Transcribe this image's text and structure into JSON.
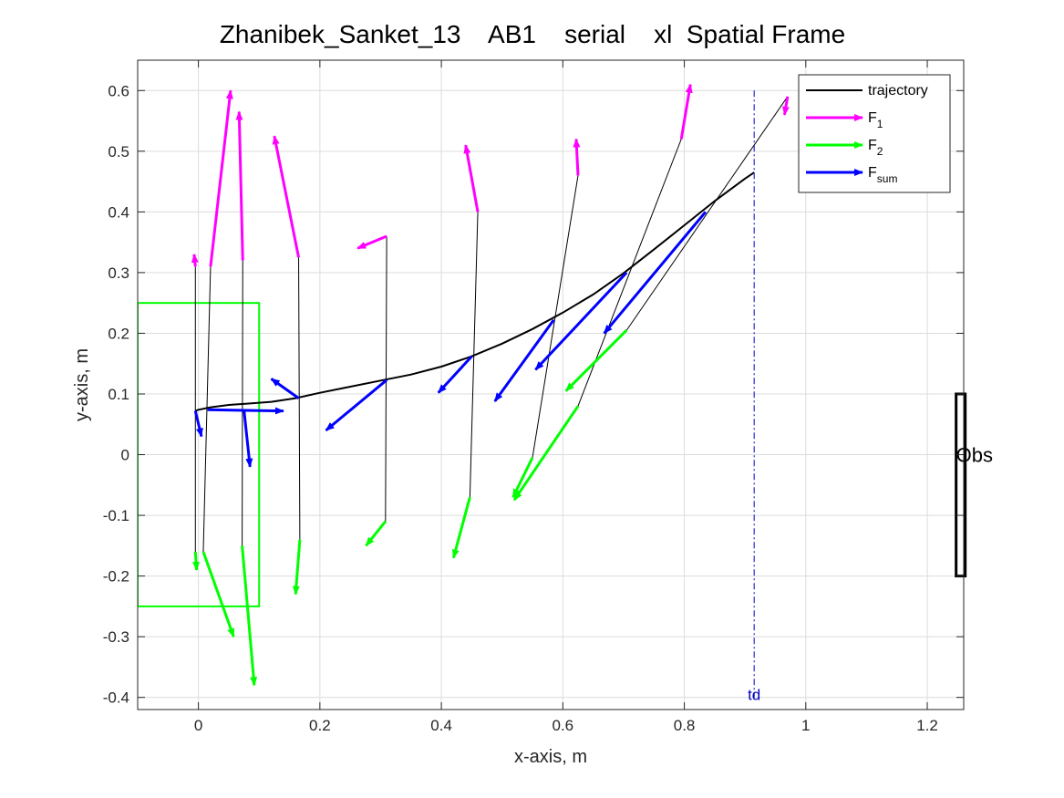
{
  "chart_data": {
    "type": "line",
    "title": "Zhanibek_Sanket_13    AB1    serial    xl  Spatial Frame",
    "xlabel": "x-axis, m",
    "ylabel": "y-axis, m",
    "xlim": [
      -0.1,
      1.26
    ],
    "ylim": [
      -0.42,
      0.65
    ],
    "xticks": [
      0,
      0.2,
      0.4,
      0.6,
      0.8,
      1,
      1.2
    ],
    "xtick_labels": [
      "0",
      "0.2",
      "0.4",
      "0.6",
      "0.8",
      "1",
      "1.2"
    ],
    "yticks": [
      -0.4,
      -0.3,
      -0.2,
      -0.1,
      0,
      0.1,
      0.2,
      0.3,
      0.4,
      0.5,
      0.6
    ],
    "ytick_labels": [
      "-0.4",
      "-0.3",
      "-0.2",
      "-0.1",
      "0",
      "0.1",
      "0.2",
      "0.3",
      "0.4",
      "0.5",
      "0.6"
    ],
    "grid": true,
    "legend_position": "top-right",
    "legend": [
      {
        "key": "trajectory",
        "label": "trajectory",
        "sub": "",
        "color": "#000000"
      },
      {
        "key": "F1",
        "label": "F",
        "sub": "1",
        "color": "#ff00ff"
      },
      {
        "key": "F2",
        "label": "F",
        "sub": "2",
        "color": "#00ff00"
      },
      {
        "key": "Fsum",
        "label": "F",
        "sub": "sum",
        "color": "#0000ff"
      }
    ],
    "colors": {
      "trajectory": "#000000",
      "F1": "#ff00ff",
      "F2": "#00ff00",
      "Fsum": "#0000ff",
      "td": "#0000c0",
      "box": "#00ff00",
      "obstacle": "#000000"
    },
    "trajectory": {
      "x": [
        -0.005,
        0.0,
        0.02,
        0.05,
        0.08,
        0.12,
        0.16,
        0.2,
        0.25,
        0.3,
        0.35,
        0.4,
        0.45,
        0.5,
        0.55,
        0.6,
        0.65,
        0.7,
        0.75,
        0.8,
        0.85,
        0.9,
        0.915
      ],
      "y": [
        0.072,
        0.074,
        0.078,
        0.082,
        0.084,
        0.087,
        0.093,
        0.102,
        0.112,
        0.122,
        0.132,
        0.145,
        0.162,
        0.183,
        0.207,
        0.234,
        0.264,
        0.299,
        0.338,
        0.378,
        0.418,
        0.455,
        0.465
      ]
    },
    "connectors": [
      {
        "x": [
          -0.005,
          -0.005
        ],
        "y": [
          0.31,
          -0.16
        ]
      },
      {
        "x": [
          0.02,
          0.008
        ],
        "y": [
          0.31,
          -0.16
        ]
      },
      {
        "x": [
          0.073,
          0.072
        ],
        "y": [
          0.32,
          -0.15
        ]
      },
      {
        "x": [
          0.165,
          0.167
        ],
        "y": [
          0.325,
          -0.14
        ]
      },
      {
        "x": [
          0.31,
          0.308
        ],
        "y": [
          0.36,
          -0.11
        ]
      },
      {
        "x": [
          0.46,
          0.447
        ],
        "y": [
          0.4,
          -0.07
        ]
      },
      {
        "x": [
          0.625,
          0.55
        ],
        "y": [
          0.46,
          -0.005
        ]
      },
      {
        "x": [
          0.795,
          0.625
        ],
        "y": [
          0.52,
          0.08
        ]
      },
      {
        "x": [
          0.97,
          0.705
        ],
        "y": [
          0.59,
          0.205
        ]
      }
    ],
    "F1": [
      {
        "x0": -0.005,
        "y0": 0.31,
        "x1": -0.007,
        "y1": 0.33
      },
      {
        "x0": 0.02,
        "y0": 0.31,
        "x1": 0.053,
        "y1": 0.6
      },
      {
        "x0": 0.073,
        "y0": 0.32,
        "x1": 0.067,
        "y1": 0.565
      },
      {
        "x0": 0.165,
        "y0": 0.325,
        "x1": 0.125,
        "y1": 0.525
      },
      {
        "x0": 0.31,
        "y0": 0.36,
        "x1": 0.262,
        "y1": 0.34
      },
      {
        "x0": 0.46,
        "y0": 0.4,
        "x1": 0.44,
        "y1": 0.51
      },
      {
        "x0": 0.625,
        "y0": 0.46,
        "x1": 0.622,
        "y1": 0.52
      },
      {
        "x0": 0.795,
        "y0": 0.52,
        "x1": 0.81,
        "y1": 0.61
      },
      {
        "x0": 0.97,
        "y0": 0.59,
        "x1": 0.965,
        "y1": 0.56
      }
    ],
    "F2": [
      {
        "x0": -0.005,
        "y0": -0.16,
        "x1": -0.003,
        "y1": -0.19
      },
      {
        "x0": 0.008,
        "y0": -0.16,
        "x1": 0.058,
        "y1": -0.3
      },
      {
        "x0": 0.072,
        "y0": -0.15,
        "x1": 0.092,
        "y1": -0.38
      },
      {
        "x0": 0.167,
        "y0": -0.14,
        "x1": 0.16,
        "y1": -0.23
      },
      {
        "x0": 0.308,
        "y0": -0.11,
        "x1": 0.276,
        "y1": -0.15
      },
      {
        "x0": 0.447,
        "y0": -0.07,
        "x1": 0.42,
        "y1": -0.17
      },
      {
        "x0": 0.55,
        "y0": -0.005,
        "x1": 0.518,
        "y1": -0.07
      },
      {
        "x0": 0.625,
        "y0": 0.08,
        "x1": 0.52,
        "y1": -0.075
      },
      {
        "x0": 0.705,
        "y0": 0.205,
        "x1": 0.605,
        "y1": 0.105
      }
    ],
    "Fsum": [
      {
        "x0": -0.005,
        "y0": 0.072,
        "x1": 0.005,
        "y1": 0.03
      },
      {
        "x0": 0.015,
        "y0": 0.074,
        "x1": 0.14,
        "y1": 0.072
      },
      {
        "x0": 0.075,
        "y0": 0.074,
        "x1": 0.085,
        "y1": -0.02
      },
      {
        "x0": 0.165,
        "y0": 0.093,
        "x1": 0.12,
        "y1": 0.125
      },
      {
        "x0": 0.31,
        "y0": 0.123,
        "x1": 0.21,
        "y1": 0.04
      },
      {
        "x0": 0.45,
        "y0": 0.162,
        "x1": 0.395,
        "y1": 0.102
      },
      {
        "x0": 0.585,
        "y0": 0.222,
        "x1": 0.488,
        "y1": 0.088
      },
      {
        "x0": 0.705,
        "y0": 0.3,
        "x1": 0.555,
        "y1": 0.14
      },
      {
        "x0": 0.835,
        "y0": 0.4,
        "x1": 0.668,
        "y1": 0.2
      }
    ],
    "box": {
      "x": [
        -0.1,
        0.1
      ],
      "y": [
        -0.25,
        0.25
      ]
    },
    "td_line": {
      "x": 0.915,
      "y": [
        -0.4,
        0.6
      ],
      "label": "td"
    },
    "obstacle": {
      "x": 1.255,
      "y": [
        -0.2,
        0.1
      ],
      "label": "Obs",
      "label_y": 0.0
    }
  }
}
